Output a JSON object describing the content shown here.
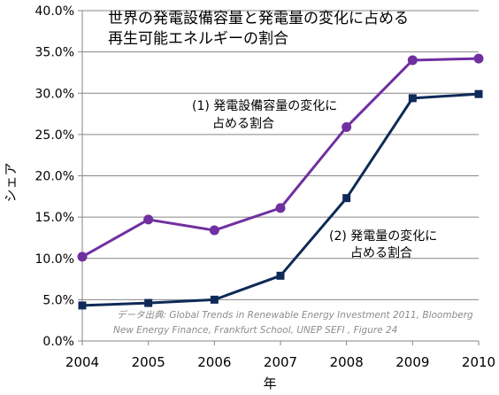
{
  "chart_data": {
    "type": "line",
    "title_lines": [
      "世界の発電設備容量と発電量の変化に占める",
      "再生可能エネルギーの割合"
    ],
    "xlabel": "年",
    "ylabel": "シェア",
    "x": [
      2004,
      2005,
      2006,
      2007,
      2008,
      2009,
      2010
    ],
    "xlim": [
      2004,
      2010
    ],
    "ylim": [
      0,
      40
    ],
    "yticks": [
      0,
      5,
      10,
      15,
      20,
      25,
      30,
      35,
      40
    ],
    "ytick_labels": [
      "0.0%",
      "5.0%",
      "10.0%",
      "15.0%",
      "20.0%",
      "25.0%",
      "30.0%",
      "35.0%",
      "40.0%"
    ],
    "grid": "horizontal",
    "series": [
      {
        "name_lines": [
          "(1) 発電設備容量の変化に",
          "占める割合"
        ],
        "values": [
          10.2,
          14.7,
          13.4,
          16.1,
          25.9,
          34.0,
          34.2
        ],
        "color": "#7030a0",
        "marker": "circle"
      },
      {
        "name_lines": [
          "(2) 発電量の変化に",
          "占める割合"
        ],
        "values": [
          4.3,
          4.6,
          5.0,
          7.9,
          17.3,
          29.4,
          29.9
        ],
        "color": "#0f2a57",
        "marker": "square"
      }
    ],
    "source_lines": [
      "データ出典: Global Trends in Renewable Energy Investment 2011, Bloomberg",
      "New Energy Finance, Frankfurt School, UNEP SEFI , Figure 24"
    ]
  }
}
